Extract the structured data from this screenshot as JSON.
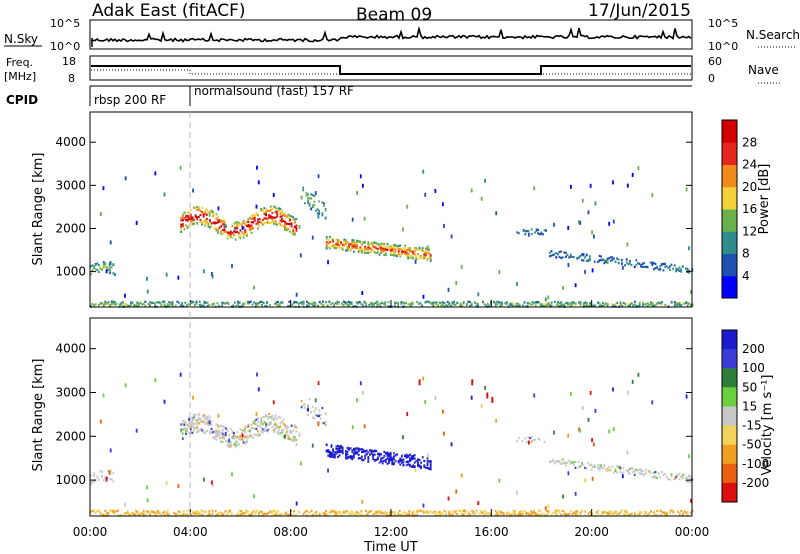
{
  "header": {
    "title": "Adak East (fitACF)",
    "beam": "Beam 09",
    "date": "17/Jun/2015"
  },
  "noise_panel": {
    "left_label": "N.Sky",
    "right_label": "N.Search",
    "left_ticks": [
      "10^5",
      "10^0"
    ],
    "right_ticks": [
      "10^5",
      "10^0"
    ]
  },
  "freq_panel": {
    "left_label_1": "Freq.",
    "left_label_2": "[MHz]",
    "right_label": "Nave",
    "left_ticks": [
      "18",
      "8"
    ],
    "right_ticks": [
      "60",
      "0"
    ]
  },
  "cpid_panel": {
    "label": "CPID",
    "modes": [
      "rbsp 200 RF",
      "normalsound (fast) 157 RF"
    ]
  },
  "chart_data": [
    {
      "type": "heatmap",
      "quantity": "power",
      "ylabel": "Slant Range [km]",
      "xlabel": "",
      "yticks": [
        "1000",
        "2000",
        "3000",
        "4000"
      ],
      "ylim": [
        180,
        4700
      ],
      "xlim_hours": [
        0,
        24
      ],
      "colorbar_label": "Power [dB]",
      "colorbar_ticks": [
        "4",
        "8",
        "12",
        "16",
        "20",
        "24",
        "28"
      ],
      "colorbar_range": [
        0,
        32
      ],
      "colors": [
        "#0000ff",
        "#1f4fb0",
        "#2e8c8c",
        "#6ab04c",
        "#f3d23a",
        "#f08a18",
        "#e4261c",
        "#d40000"
      ]
    },
    {
      "type": "heatmap",
      "quantity": "velocity",
      "ylabel": "Slant Range [km]",
      "xlabel": "Time UT",
      "yticks": [
        "1000",
        "2000",
        "3000",
        "4000"
      ],
      "ylim": [
        180,
        4700
      ],
      "xlim_hours": [
        0,
        24
      ],
      "xticks": [
        "00:00",
        "04:00",
        "08:00",
        "12:00",
        "16:00",
        "20:00",
        "00:00"
      ],
      "colorbar_label": "Velocity [m s⁻¹]",
      "colorbar_ticks": [
        "200",
        "100",
        "50",
        "15",
        "-15",
        "-50",
        "-100",
        "-200"
      ],
      "colors": [
        "#1a1acf",
        "#3b3bd8",
        "#2f7f3a",
        "#6ccf40",
        "#c8c8c8",
        "#f2d25a",
        "#f0a020",
        "#e86010",
        "#dd1010"
      ]
    }
  ]
}
